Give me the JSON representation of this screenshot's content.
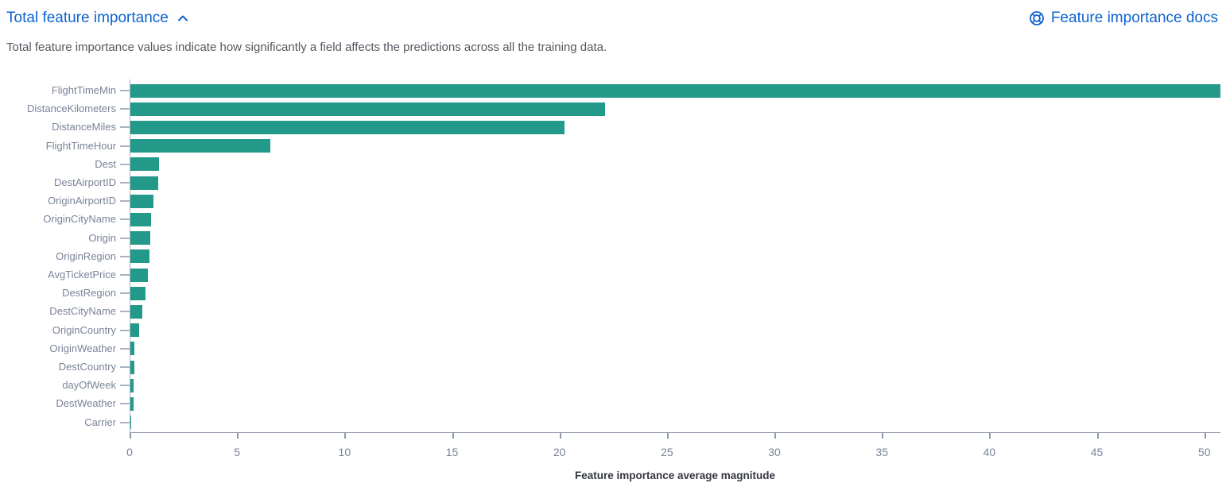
{
  "header": {
    "title": "Total feature importance",
    "docs_link_label": "Feature importance docs",
    "description": "Total feature importance values indicate how significantly a field affects the predictions across all the training data."
  },
  "colors": {
    "link_blue": "#0d62d0",
    "bar_teal": "#23998a",
    "axis_line": "#8f99ab",
    "axis_label_gray": "#7a8398",
    "text_dark": "#343741"
  },
  "icons": {
    "collapse": "chevron-up-icon",
    "docs": "life-ring-docs-icon"
  },
  "chart_data": {
    "type": "bar",
    "orientation": "horizontal",
    "title": "",
    "xlabel": "Feature importance average magnitude",
    "ylabel": "",
    "xlim": [
      0,
      50.75
    ],
    "xticks": [
      0,
      5,
      10,
      15,
      20,
      25,
      30,
      35,
      40,
      45,
      50
    ],
    "grid": false,
    "legend": "none",
    "categories": [
      "FlightTimeMin",
      "DistanceKilometers",
      "DistanceMiles",
      "FlightTimeHour",
      "Dest",
      "DestAirportID",
      "OriginAirportID",
      "OriginCityName",
      "Origin",
      "OriginRegion",
      "AvgTicketPrice",
      "DestRegion",
      "DestCityName",
      "OriginCountry",
      "OriginWeather",
      "DestCountry",
      "dayOfWeek",
      "DestWeather",
      "Carrier"
    ],
    "values": [
      50.7,
      22.1,
      20.2,
      6.5,
      1.32,
      1.28,
      1.06,
      0.95,
      0.93,
      0.87,
      0.83,
      0.72,
      0.57,
      0.41,
      0.18,
      0.17,
      0.14,
      0.14,
      0.05
    ]
  }
}
